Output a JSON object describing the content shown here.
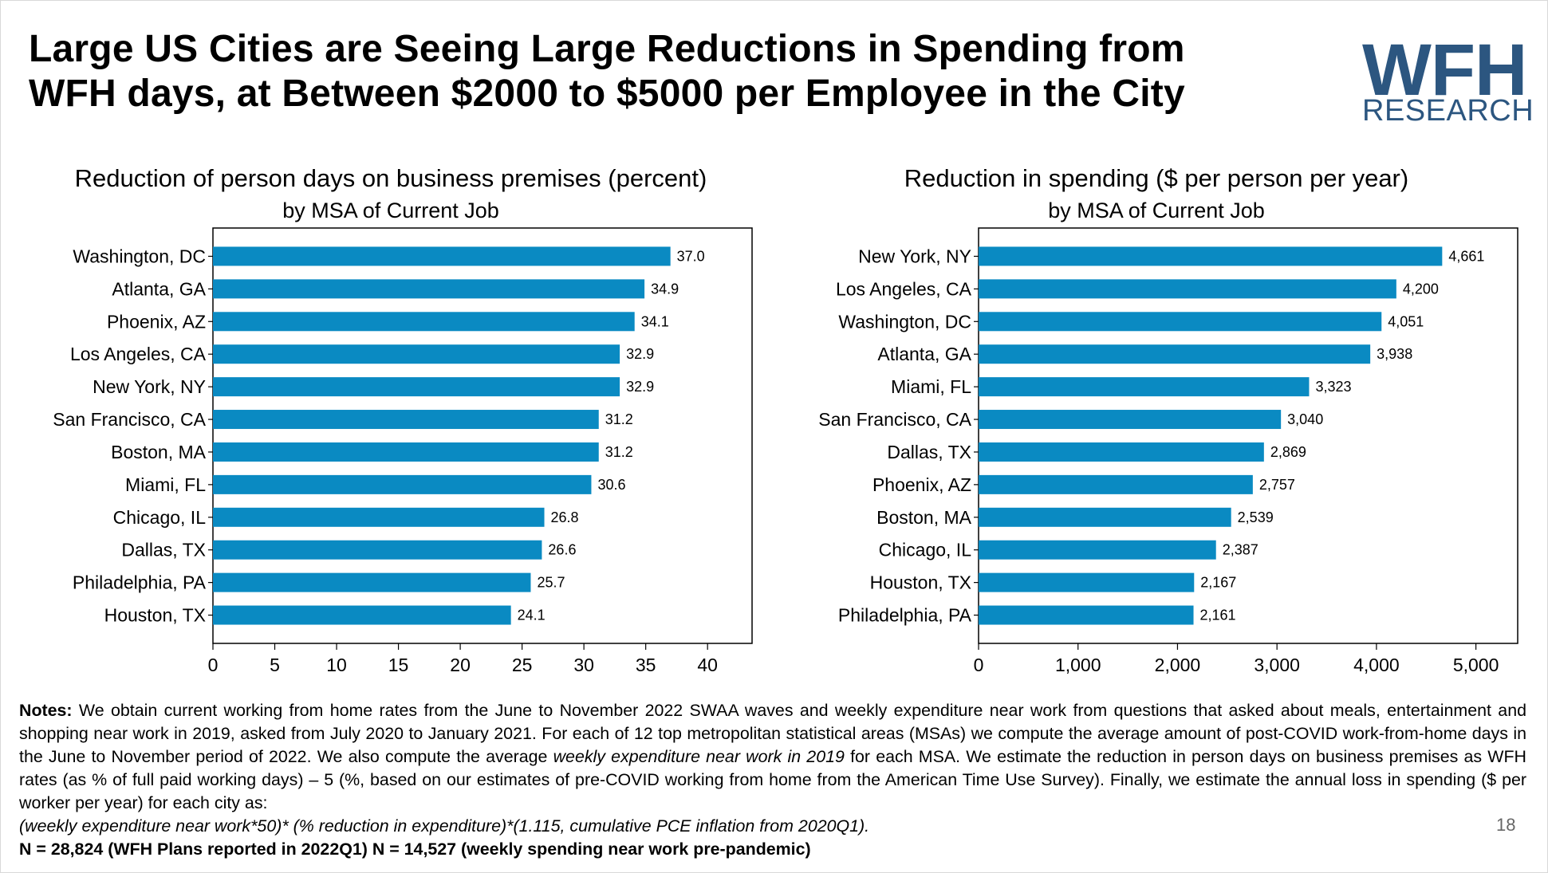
{
  "title": "Large US Cities are Seeing Large Reductions in Spending from WFH days, at Between $2000 to $5000 per Employee in the City",
  "logo": {
    "text_main": "WFH",
    "text_sub": "RESEARCH",
    "bar_colors": [
      "#33b5e5",
      "#f5a623",
      "#e8485c"
    ]
  },
  "bar_color": "#0a8ac2",
  "chart_data": [
    {
      "type": "bar",
      "orientation": "horizontal",
      "title": "Reduction of person days on business premises (percent)",
      "subtitle": "by MSA of Current Job",
      "categories": [
        "Washington, DC",
        "Atlanta, GA",
        "Phoenix, AZ",
        "Los Angeles, CA",
        "New York, NY",
        "San Francisco, CA",
        "Boston, MA",
        "Miami, FL",
        "Chicago, IL",
        "Dallas, TX",
        "Philadelphia, PA",
        "Houston, TX"
      ],
      "values": [
        37.0,
        34.9,
        34.1,
        32.9,
        32.9,
        31.2,
        31.2,
        30.6,
        26.8,
        26.6,
        25.7,
        24.1
      ],
      "value_labels": [
        "37.0",
        "34.9",
        "34.1",
        "32.9",
        "32.9",
        "31.2",
        "31.2",
        "30.6",
        "26.8",
        "26.6",
        "25.7",
        "24.1"
      ],
      "xlim": [
        0,
        43.6
      ],
      "xticks": [
        0,
        5,
        10,
        15,
        20,
        25,
        30,
        35,
        40
      ],
      "xtick_labels": [
        "0",
        "5",
        "10",
        "15",
        "20",
        "25",
        "30",
        "35",
        "40"
      ],
      "xlabel": "",
      "ylabel": ""
    },
    {
      "type": "bar",
      "orientation": "horizontal",
      "title": "Reduction in spending ($ per person per year)",
      "subtitle": "by MSA of Current Job",
      "categories": [
        "New York, NY",
        "Los Angeles, CA",
        "Washington, DC",
        "Atlanta, GA",
        "Miami, FL",
        "San Francisco, CA",
        "Dallas, TX",
        "Phoenix, AZ",
        "Boston, MA",
        "Chicago, IL",
        "Houston, TX",
        "Philadelphia, PA"
      ],
      "values": [
        4661,
        4200,
        4051,
        3938,
        3323,
        3040,
        2869,
        2757,
        2539,
        2387,
        2167,
        2161
      ],
      "value_labels": [
        "4,661",
        "4,200",
        "4,051",
        "3,938",
        "3,323",
        "3,040",
        "2,869",
        "2,757",
        "2,539",
        "2,387",
        "2,167",
        "2,161"
      ],
      "xlim": [
        0,
        5420
      ],
      "xticks": [
        0,
        1000,
        2000,
        3000,
        4000,
        5000
      ],
      "xtick_labels": [
        "0",
        "1,000",
        "2,000",
        "3,000",
        "4,000",
        "5,000"
      ],
      "xlabel": "",
      "ylabel": ""
    }
  ],
  "notes": {
    "label": "Notes:",
    "text_1": " We obtain current working from home rates from the June to November 2022 SWAA waves and weekly expenditure near work from questions that asked about meals, entertainment and shopping near work in 2019, asked from July 2020 to January 2021.  For each of 12 top metropolitan statistical areas (MSAs) we compute the average amount of post-COVID work-from-home days in the June to November period of 2022. We also compute the average ",
    "text_italic": "weekly expenditure near work in 2019",
    "text_2": " for each MSA. We estimate the reduction in person days on business premises as WFH rates (as % of full paid working days) – 5 (%, based on our estimates of pre-COVID working from home from the American Time Use Survey). Finally, we estimate the annual loss in spending ($ per worker per year) for each city as:",
    "formula": "(weekly expenditure near work*50)* (% reduction in expenditure)*(1.115, cumulative PCE inflation from 2020Q1).",
    "n_line": "N = 28,824 (WFH Plans reported in 2022Q1) N = 14,527 (weekly spending near work pre-pandemic)"
  },
  "page_number": "18"
}
